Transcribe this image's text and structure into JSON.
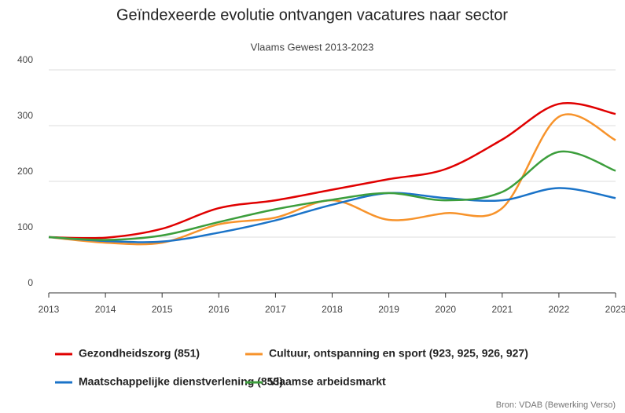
{
  "chart_data": {
    "type": "line",
    "title": "Geïndexeerde evolutie ontvangen vacatures naar sector",
    "subtitle": "Vlaams Gewest 2013-2023",
    "source": "Bron: VDAB (Bewerking Verso)",
    "x": [
      2013,
      2014,
      2015,
      2016,
      2017,
      2018,
      2019,
      2020,
      2021,
      2022,
      2023
    ],
    "series": [
      {
        "name": "Gezondheidszorg (851)",
        "color": "#e00000",
        "values": [
          100,
          99,
          115,
          152,
          166,
          185,
          204,
          222,
          275,
          339,
          321
        ]
      },
      {
        "name": "Cultuur, ontspanning en sport (923, 925, 926, 927)",
        "color": "#f7932b",
        "values": [
          100,
          90,
          90,
          123,
          135,
          166,
          131,
          143,
          152,
          316,
          274
        ]
      },
      {
        "name": "Maatschappelijke dienstverlening (853)",
        "color": "#1a73c8",
        "values": [
          100,
          93,
          92,
          108,
          130,
          158,
          179,
          170,
          166,
          188,
          170
        ]
      },
      {
        "name": "Vlaamse arbeidsmarkt",
        "color": "#3c9e3c",
        "values": [
          100,
          95,
          103,
          127,
          150,
          167,
          179,
          166,
          181,
          253,
          219
        ]
      }
    ],
    "xlim": [
      2013,
      2023
    ],
    "xticks": [
      2013,
      2014,
      2015,
      2016,
      2017,
      2018,
      2019,
      2020,
      2021,
      2022,
      2023
    ],
    "ylim": [
      0,
      400
    ],
    "yticks": [
      0,
      100,
      200,
      300,
      400
    ],
    "grid": true
  }
}
